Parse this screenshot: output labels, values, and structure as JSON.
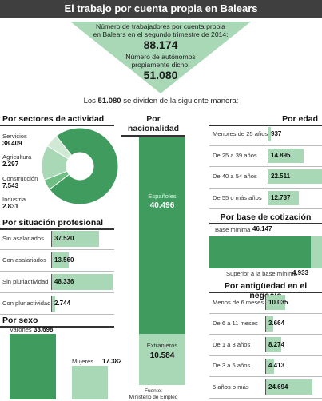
{
  "title": "El trabajo por cuenta propia en Balears",
  "funnel": {
    "line1": "Número de trabajadores por cuenta propia",
    "line2": "en Balears en el segundo trimestre de 2014:",
    "total": "88.174",
    "line3": "Número de autónomos",
    "line4": "propiamente dicho:",
    "autonomos": "51.080"
  },
  "intro": {
    "before": "Los ",
    "number": "51.080",
    "after": " se dividen de la siguiente manera:"
  },
  "colors": {
    "dark": "#3f9c5e",
    "mid": "#6fbf84",
    "light": "#a8d8b5",
    "pale": "#cfe9d5",
    "header": "#3f3f3f"
  },
  "chart_data": [
    {
      "id": "sectores",
      "type": "pie",
      "title": "Por sectores de actividad",
      "slices": [
        {
          "label": "Servicios",
          "value": 38409,
          "display": "38.409",
          "color": "#3f9c5e"
        },
        {
          "label": "Agricultura",
          "value": 2297,
          "display": "2.297",
          "color": "#6fbf84"
        },
        {
          "label": "Construcción",
          "value": 7543,
          "display": "7.543",
          "color": "#a8d8b5"
        },
        {
          "label": "Industria",
          "value": 2831,
          "display": "2.831",
          "color": "#cfe9d5"
        }
      ]
    },
    {
      "id": "situacion",
      "type": "bar",
      "title": "Por situación profesional",
      "categories": [
        "Sin asalariados",
        "Con asalariados",
        "Sin pluriactividad",
        "Con pluriactividad"
      ],
      "values": [
        37520,
        13560,
        48336,
        2744
      ],
      "displays": [
        "37.520",
        "13.560",
        "48.336",
        "2.744"
      ]
    },
    {
      "id": "sexo",
      "type": "bar",
      "title": "Por sexo",
      "categories": [
        "Varones",
        "Mujeres"
      ],
      "values": [
        33698,
        17382
      ],
      "displays": [
        "33.698",
        "17.382"
      ]
    },
    {
      "id": "nacionalidad",
      "type": "bar",
      "title_line1": "Por",
      "title_line2": "nacionalidad",
      "categories": [
        "Españoles",
        "Extranjeros"
      ],
      "values": [
        40496,
        10584
      ],
      "displays": [
        "40.496",
        "10.584"
      ]
    },
    {
      "id": "edad",
      "type": "bar",
      "title": "Por edad",
      "categories": [
        "Menores de 25 años",
        "De 25 a 39 años",
        "De 40 a 54 años",
        "De 55 o más años"
      ],
      "values": [
        937,
        14895,
        22511,
        12737
      ],
      "displays": [
        "937",
        "14.895",
        "22.511",
        "12.737"
      ]
    },
    {
      "id": "cotizacion",
      "type": "bar",
      "title": "Por base de cotización",
      "categories": [
        "Base mínima",
        "Superior a la base mínima"
      ],
      "values": [
        46147,
        4933
      ],
      "displays": [
        "46.147",
        "4.933"
      ]
    },
    {
      "id": "antiguedad",
      "type": "bar",
      "title": "Por antigüedad en el negocio",
      "categories": [
        "Menos de 6 meses",
        "De 6 a 11 meses",
        "De 1 a 3 años",
        "De 3 a 5 años",
        "5 años o más"
      ],
      "values": [
        10035,
        3664,
        8274,
        4413,
        24694
      ],
      "displays": [
        "10.035",
        "3.664",
        "8.274",
        "4.413",
        "24.694"
      ]
    }
  ],
  "source": {
    "line1": "Fuente:",
    "line2": "Ministerio de Empleo"
  }
}
